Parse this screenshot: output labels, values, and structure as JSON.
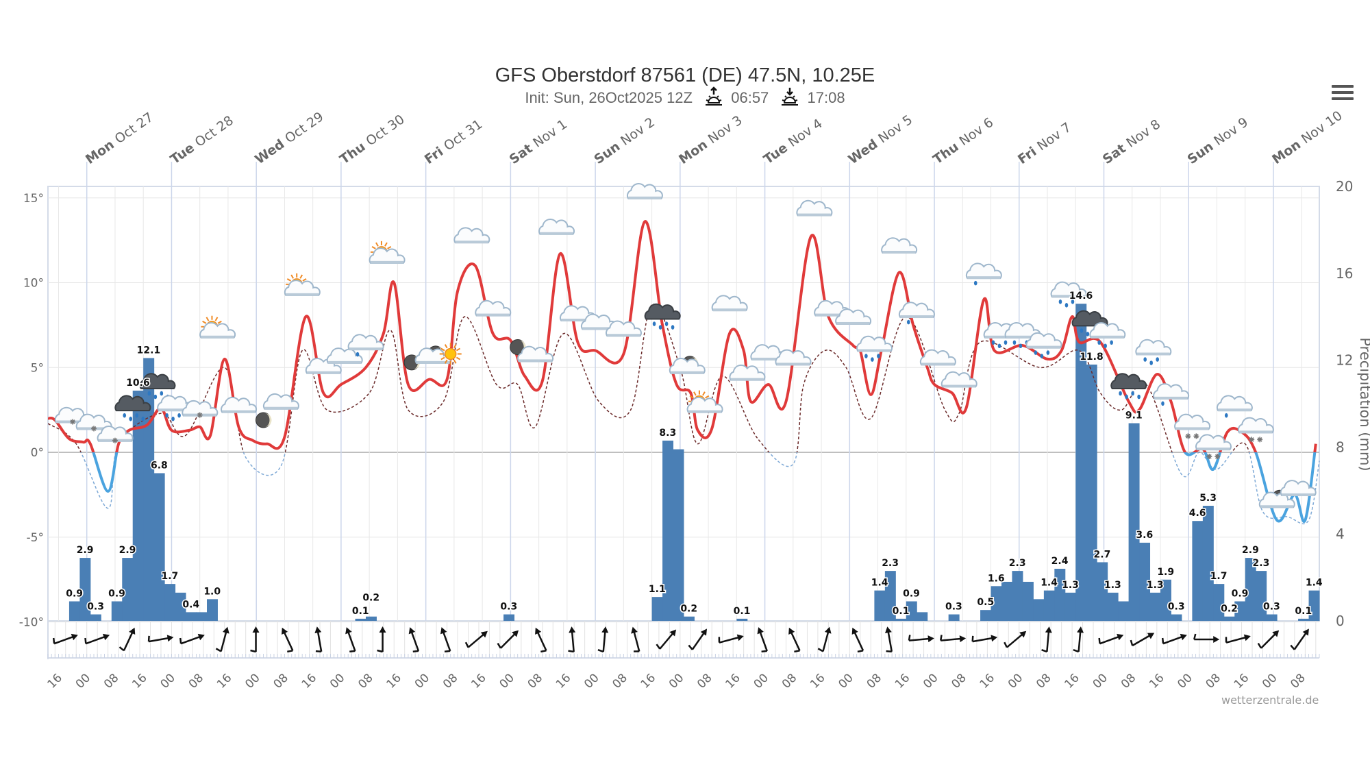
{
  "header": {
    "title": "GFS Oberstdorf 87561 (DE) 47.5N, 10.25E",
    "init": "Init: Sun, 26Oct2025 12Z",
    "sunrise": "06:57",
    "sunset": "17:08",
    "sunrise_icon": "sunrise-icon",
    "sunset_icon": "sunset-icon",
    "menu_icon": "hamburger-menu-icon"
  },
  "credit": "wetterzentrale.de",
  "chart_data": {
    "type": "line+bar",
    "title": "GFS Oberstdorf 87561 (DE) 47.5N, 10.25E",
    "x_range": [
      "10-26 13",
      "11-10 13"
    ],
    "y_left": {
      "range": [
        -10,
        15.6
      ],
      "ticks": [
        "15°",
        "10°",
        "5°",
        "0°",
        "-5°",
        "-10°"
      ],
      "tick_values": [
        15,
        10,
        5,
        0,
        -5,
        -10
      ]
    },
    "y_right": {
      "label": "Precipitation (mm)",
      "range": [
        0,
        20
      ],
      "ticks": [
        "20",
        "16",
        "12",
        "8",
        "4",
        "0"
      ],
      "tick_values": [
        20,
        16,
        12,
        8,
        4,
        0
      ]
    },
    "grid": true,
    "colors": {
      "temp_above": "#e03a3a",
      "temp_below": "#4aa3df",
      "dew_above": "#6b2a2a",
      "dew_below": "#7ea9d6",
      "precip": "#4a7fb5"
    },
    "days": [
      {
        "wd": "Mon",
        "date": "Oct 27",
        "t": "10-27 00"
      },
      {
        "wd": "Tue",
        "date": "Oct 28",
        "t": "10-28 00"
      },
      {
        "wd": "Wed",
        "date": "Oct 29",
        "t": "10-29 00"
      },
      {
        "wd": "Thu",
        "date": "Oct 30",
        "t": "10-30 00"
      },
      {
        "wd": "Fri",
        "date": "Oct 31",
        "t": "10-31 00"
      },
      {
        "wd": "Sat",
        "date": "Nov 1",
        "t": "11-01 00"
      },
      {
        "wd": "Sun",
        "date": "Nov 2",
        "t": "11-02 00"
      },
      {
        "wd": "Mon",
        "date": "Nov 3",
        "t": "11-03 00"
      },
      {
        "wd": "Tue",
        "date": "Nov 4",
        "t": "11-04 00"
      },
      {
        "wd": "Wed",
        "date": "Nov 5",
        "t": "11-05 00"
      },
      {
        "wd": "Thu",
        "date": "Nov 6",
        "t": "11-06 00"
      },
      {
        "wd": "Fri",
        "date": "Nov 7",
        "t": "11-07 00"
      },
      {
        "wd": "Sat",
        "date": "Nov 8",
        "t": "11-08 00"
      },
      {
        "wd": "Sun",
        "date": "Nov 9",
        "t": "11-09 00"
      },
      {
        "wd": "Mon",
        "date": "Nov 10",
        "t": "11-10 00"
      }
    ],
    "hour_ticks": [
      "16",
      "00",
      "08",
      "16",
      "00",
      "08",
      "16",
      "00",
      "08",
      "16",
      "00",
      "08",
      "16",
      "00",
      "08",
      "16",
      "00",
      "08",
      "16",
      "00",
      "08",
      "16",
      "00",
      "08",
      "16",
      "00",
      "08",
      "16",
      "00",
      "08",
      "16",
      "00",
      "08",
      "16",
      "00",
      "08",
      "16",
      "00",
      "08",
      "16",
      "00",
      "08",
      "16",
      "00",
      "08"
    ],
    "first_hour_tick": "10-26 16",
    "temperature": [
      [
        "10-26 13",
        2.0
      ],
      [
        "10-26 15",
        1.9
      ],
      [
        "10-26 19",
        0.8
      ],
      [
        "10-26 23",
        0.6
      ],
      [
        "10-27 01",
        0.5
      ],
      [
        "10-27 06",
        -2.3
      ],
      [
        "10-27 09",
        0.5
      ],
      [
        "10-27 12",
        1.3
      ],
      [
        "10-27 17",
        1.6
      ],
      [
        "10-27 21",
        2.6
      ],
      [
        "10-28 00",
        1.3
      ],
      [
        "10-28 05",
        1.3
      ],
      [
        "10-28 08",
        1.5
      ],
      [
        "10-28 11",
        1.0
      ],
      [
        "10-28 15",
        5.5
      ],
      [
        "10-28 19",
        1.5
      ],
      [
        "10-28 23",
        0.7
      ],
      [
        "10-29 03",
        0.5
      ],
      [
        "10-29 08",
        0.9
      ],
      [
        "10-29 14",
        8.0
      ],
      [
        "10-29 19",
        3.5
      ],
      [
        "10-30 00",
        4.0
      ],
      [
        "10-30 07",
        5.0
      ],
      [
        "10-30 12",
        7.0
      ],
      [
        "10-30 15",
        10.0
      ],
      [
        "10-30 19",
        4.0
      ],
      [
        "10-31 01",
        4.3
      ],
      [
        "10-31 06",
        4.3
      ],
      [
        "10-31 09",
        9.5
      ],
      [
        "10-31 14",
        11.0
      ],
      [
        "10-31 19",
        7.0
      ],
      [
        "11-01 00",
        6.6
      ],
      [
        "11-01 04",
        4.5
      ],
      [
        "11-01 09",
        4.2
      ],
      [
        "11-01 14",
        11.7
      ],
      [
        "11-01 19",
        6.5
      ],
      [
        "11-02 00",
        6.0
      ],
      [
        "11-02 08",
        5.8
      ],
      [
        "11-02 14",
        13.6
      ],
      [
        "11-02 19",
        7.5
      ],
      [
        "11-02 23",
        4.0
      ],
      [
        "11-03 03",
        3.5
      ],
      [
        "11-03 05",
        1.3
      ],
      [
        "11-03 09",
        1.4
      ],
      [
        "11-03 14",
        7.0
      ],
      [
        "11-03 18",
        6.0
      ],
      [
        "11-03 20",
        3.0
      ],
      [
        "11-04 01",
        4.0
      ],
      [
        "11-04 06",
        3.0
      ],
      [
        "11-04 13",
        12.7
      ],
      [
        "11-04 18",
        8.0
      ],
      [
        "11-05 01",
        6.3
      ],
      [
        "11-05 03",
        6.0
      ],
      [
        "11-05 06",
        3.4
      ],
      [
        "11-05 09",
        6.0
      ],
      [
        "11-05 14",
        10.6
      ],
      [
        "11-05 18",
        7.5
      ],
      [
        "11-05 22",
        5.0
      ],
      [
        "11-06 00",
        4.0
      ],
      [
        "11-06 05",
        3.5
      ],
      [
        "11-06 09",
        2.6
      ],
      [
        "11-06 14",
        9.0
      ],
      [
        "11-06 17",
        6.0
      ],
      [
        "11-07 01",
        6.3
      ],
      [
        "11-07 08",
        5.5
      ],
      [
        "11-07 12",
        6.0
      ],
      [
        "11-07 15",
        8.0
      ],
      [
        "11-07 17",
        6.5
      ],
      [
        "11-07 23",
        6.5
      ],
      [
        "11-08 07",
        3.0
      ],
      [
        "11-08 10",
        2.5
      ],
      [
        "11-08 15",
        4.6
      ],
      [
        "11-08 19",
        3.0
      ],
      [
        "11-08 23",
        0.0
      ],
      [
        "11-09 04",
        0.2
      ],
      [
        "11-09 07",
        -1.0
      ],
      [
        "11-09 11",
        1.2
      ],
      [
        "11-09 15",
        1.2
      ],
      [
        "11-09 19",
        0.0
      ],
      [
        "11-10 01",
        -4.0
      ],
      [
        "11-10 06",
        -2.5
      ],
      [
        "11-10 09",
        -4.0
      ],
      [
        "11-10 12",
        0.5
      ]
    ],
    "dashed_temperature": [
      [
        "10-26 13",
        1.7
      ],
      [
        "10-26 21",
        0.5
      ],
      [
        "10-27 06",
        -3.3
      ],
      [
        "10-27 09",
        0.5
      ],
      [
        "10-27 21",
        2.3
      ],
      [
        "10-28 04",
        1.0
      ],
      [
        "10-28 15",
        5.0
      ],
      [
        "10-28 21",
        -0.3
      ],
      [
        "10-29 07",
        -0.8
      ],
      [
        "10-29 13",
        6.0
      ],
      [
        "10-29 20",
        2.5
      ],
      [
        "10-30 08",
        3.5
      ],
      [
        "10-30 14",
        7.2
      ],
      [
        "10-30 19",
        2.5
      ],
      [
        "10-31 05",
        3.0
      ],
      [
        "10-31 11",
        8.0
      ],
      [
        "10-31 20",
        4.0
      ],
      [
        "11-01 02",
        4.0
      ],
      [
        "11-01 07",
        1.5
      ],
      [
        "11-01 15",
        7.0
      ],
      [
        "11-02 01",
        3.0
      ],
      [
        "11-02 10",
        2.5
      ],
      [
        "11-02 16",
        8.7
      ],
      [
        "11-03 00",
        5.0
      ],
      [
        "11-03 05",
        0.5
      ],
      [
        "11-03 12",
        4.5
      ],
      [
        "11-03 22",
        0.8
      ],
      [
        "11-04 08",
        -0.7
      ],
      [
        "11-04 11",
        4.0
      ],
      [
        "11-04 17",
        6.0
      ],
      [
        "11-04 23",
        5.0
      ],
      [
        "11-05 06",
        2.0
      ],
      [
        "11-05 16",
        8.0
      ],
      [
        "11-06 03",
        2.5
      ],
      [
        "11-06 07",
        2.3
      ],
      [
        "11-06 13",
        6.5
      ],
      [
        "11-07 06",
        5.0
      ],
      [
        "11-07 17",
        6.0
      ],
      [
        "11-07 23",
        3.5
      ],
      [
        "11-08 05",
        2.5
      ],
      [
        "11-08 12",
        4.0
      ],
      [
        "11-08 22",
        -1.3
      ],
      [
        "11-09 03",
        0.0
      ],
      [
        "11-09 08",
        -1.0
      ],
      [
        "11-09 16",
        0.5
      ],
      [
        "11-09 21",
        -3.5
      ],
      [
        "11-10 04",
        -3.8
      ],
      [
        "11-10 10",
        -4.0
      ],
      [
        "11-10 13",
        -0.5
      ]
    ],
    "precip_period_hours": 3,
    "precipitation": [
      [
        "10-26 19",
        0.9,
        "0.9"
      ],
      [
        "10-26 22",
        2.9,
        "2.9"
      ],
      [
        "10-27 01",
        0.3,
        "0.3"
      ],
      [
        "10-27 07",
        0.9,
        "0.9"
      ],
      [
        "10-27 10",
        2.9,
        "2.9"
      ],
      [
        "10-27 13",
        10.6,
        "10.6"
      ],
      [
        "10-27 16",
        12.1,
        "12.1"
      ],
      [
        "10-27 19",
        6.8,
        "6.8"
      ],
      [
        "10-27 22",
        1.7,
        "1.7"
      ],
      [
        "10-28 01",
        1.3,
        null
      ],
      [
        "10-28 04",
        0.4,
        "0.4"
      ],
      [
        "10-28 07",
        0.4,
        null
      ],
      [
        "10-28 10",
        1.0,
        "1.0"
      ],
      [
        "10-30 04",
        0.1,
        "0.1"
      ],
      [
        "10-30 07",
        0.2,
        "0.2"
      ],
      [
        "10-31 22",
        0.3,
        "0.3"
      ],
      [
        "11-02 16",
        1.1,
        "1.1"
      ],
      [
        "11-02 19",
        8.3,
        "8.3"
      ],
      [
        "11-02 22",
        7.9,
        null
      ],
      [
        "11-03 01",
        0.2,
        "0.2"
      ],
      [
        "11-03 16",
        0.1,
        "0.1"
      ],
      [
        "11-05 07",
        1.4,
        "1.4"
      ],
      [
        "11-05 10",
        2.3,
        "2.3"
      ],
      [
        "11-05 13",
        0.1,
        "0.1"
      ],
      [
        "11-05 16",
        0.9,
        "0.9"
      ],
      [
        "11-05 19",
        0.4,
        null
      ],
      [
        "11-06 04",
        0.3,
        "0.3"
      ],
      [
        "11-06 13",
        0.5,
        "0.5"
      ],
      [
        "11-06 16",
        1.6,
        "1.6"
      ],
      [
        "11-06 19",
        1.8,
        null
      ],
      [
        "11-06 22",
        2.3,
        "2.3"
      ],
      [
        "11-07 01",
        1.8,
        null
      ],
      [
        "11-07 04",
        1.0,
        null
      ],
      [
        "11-07 07",
        1.4,
        "1.4"
      ],
      [
        "11-07 10",
        2.4,
        "2.4"
      ],
      [
        "11-07 13",
        1.3,
        "1.3"
      ],
      [
        "11-07 16",
        14.6,
        "14.6"
      ],
      [
        "11-07 19",
        11.8,
        "11.8"
      ],
      [
        "11-07 22",
        2.7,
        "2.7"
      ],
      [
        "11-08 01",
        1.3,
        "1.3"
      ],
      [
        "11-08 04",
        0.9,
        null
      ],
      [
        "11-08 07",
        9.1,
        "9.1"
      ],
      [
        "11-08 10",
        3.6,
        "3.6"
      ],
      [
        "11-08 13",
        1.3,
        "1.3"
      ],
      [
        "11-08 16",
        1.9,
        "1.9"
      ],
      [
        "11-08 19",
        0.3,
        "0.3"
      ],
      [
        "11-09 01",
        4.6,
        "4.6"
      ],
      [
        "11-09 04",
        5.3,
        "5.3"
      ],
      [
        "11-09 07",
        1.7,
        "1.7"
      ],
      [
        "11-09 10",
        0.2,
        "0.2"
      ],
      [
        "11-09 13",
        0.9,
        "0.9"
      ],
      [
        "11-09 16",
        2.9,
        "2.9"
      ],
      [
        "11-09 19",
        2.3,
        "2.3"
      ],
      [
        "11-09 22",
        0.3,
        "0.3"
      ],
      [
        "11-10 07",
        0.1,
        "0.1"
      ],
      [
        "11-10 10",
        1.4,
        "1.4"
      ]
    ],
    "weather_icons": [
      [
        "10-26 20",
        2.0,
        "sleet"
      ],
      [
        "10-27 02",
        1.6,
        "sleet"
      ],
      [
        "10-27 08",
        0.9,
        "sleet"
      ],
      [
        "10-27 13",
        2.7,
        "heavy-rain"
      ],
      [
        "10-27 20",
        4.0,
        "heavy-rain"
      ],
      [
        "10-28 01",
        2.7,
        "rain"
      ],
      [
        "10-28 08",
        2.4,
        "sleet"
      ],
      [
        "10-28 13",
        7.0,
        "sun-cloud"
      ],
      [
        "10-28 19",
        2.6,
        "cloud"
      ],
      [
        "10-29 02",
        1.9,
        "moon"
      ],
      [
        "10-29 07",
        2.8,
        "cloud"
      ],
      [
        "10-29 13",
        9.5,
        "sun-cloud"
      ],
      [
        "10-29 19",
        4.9,
        "cloud"
      ],
      [
        "10-30 01",
        5.5,
        "cloud"
      ],
      [
        "10-30 07",
        6.3,
        "drizzle"
      ],
      [
        "10-30 13",
        11.4,
        "sun-cloud"
      ],
      [
        "10-30 20",
        5.3,
        "moon"
      ],
      [
        "10-31 02",
        5.5,
        "moon-cloud"
      ],
      [
        "10-31 07",
        5.8,
        "sun"
      ],
      [
        "10-31 13",
        12.6,
        "cloud"
      ],
      [
        "10-31 19",
        8.3,
        "cloud"
      ],
      [
        "11-01 02",
        6.2,
        "moon"
      ],
      [
        "11-01 07",
        5.6,
        "cloud"
      ],
      [
        "11-01 13",
        13.1,
        "cloud"
      ],
      [
        "11-01 19",
        8.0,
        "cloud"
      ],
      [
        "11-02 01",
        7.5,
        "cloud"
      ],
      [
        "11-02 08",
        7.1,
        "cloud"
      ],
      [
        "11-02 14",
        15.2,
        "cloud"
      ],
      [
        "11-02 19",
        8.1,
        "heavy-rain"
      ],
      [
        "11-03 02",
        4.9,
        "moon-cloud"
      ],
      [
        "11-03 07",
        2.6,
        "sun-cloud"
      ],
      [
        "11-03 14",
        8.6,
        "cloud"
      ],
      [
        "11-03 19",
        4.5,
        "cloud"
      ],
      [
        "11-04 01",
        5.7,
        "cloud"
      ],
      [
        "11-04 08",
        5.4,
        "cloud"
      ],
      [
        "11-04 14",
        14.2,
        "cloud"
      ],
      [
        "11-04 19",
        8.3,
        "cloud"
      ],
      [
        "11-05 01",
        7.8,
        "cloud"
      ],
      [
        "11-05 07",
        6.2,
        "rain"
      ],
      [
        "11-05 14",
        12.0,
        "cloud"
      ],
      [
        "11-05 19",
        8.2,
        "drizzle"
      ],
      [
        "11-06 01",
        5.4,
        "cloud"
      ],
      [
        "11-06 07",
        4.1,
        "cloud"
      ],
      [
        "11-06 14",
        10.5,
        "drizzle"
      ],
      [
        "11-06 19",
        7.0,
        "rain"
      ],
      [
        "11-07 01",
        7.0,
        "rain"
      ],
      [
        "11-07 07",
        6.4,
        "rain"
      ],
      [
        "11-07 14",
        9.4,
        "rain"
      ],
      [
        "11-07 20",
        7.7,
        "heavy-rain"
      ],
      [
        "11-08 01",
        7.0,
        "rain"
      ],
      [
        "11-08 07",
        4.0,
        "heavy-rain"
      ],
      [
        "11-08 14",
        6.0,
        "rain"
      ],
      [
        "11-08 19",
        3.4,
        "drizzle"
      ],
      [
        "11-09 01",
        1.6,
        "snow"
      ],
      [
        "11-09 07",
        0.4,
        "snow"
      ],
      [
        "11-09 13",
        2.7,
        "drizzle"
      ],
      [
        "11-09 19",
        1.4,
        "snow"
      ],
      [
        "11-10 01",
        -3.0,
        "moon-cloud"
      ],
      [
        "11-10 07",
        -2.3,
        "cloud"
      ]
    ],
    "wind_direction_deg": [
      70,
      70,
      25,
      80,
      70,
      15,
      0,
      -25,
      -10,
      -20,
      0,
      -20,
      -20,
      50,
      45,
      -25,
      -5,
      5,
      -15,
      40,
      35,
      75,
      -20,
      -25,
      15,
      -25,
      -10,
      85,
      85,
      80,
      50,
      5,
      5,
      70,
      60,
      70,
      90,
      75,
      45,
      35
    ]
  }
}
